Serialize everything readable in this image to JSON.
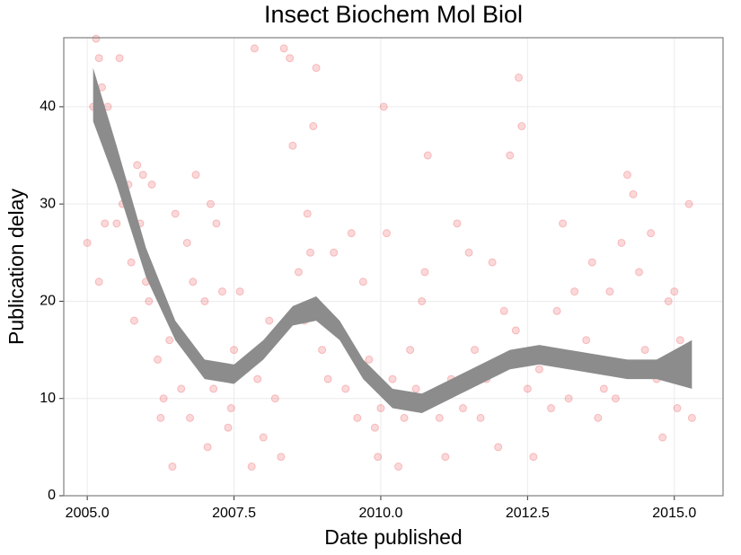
{
  "chart_data": {
    "type": "scatter",
    "title": "Insect Biochem Mol Biol",
    "x_label": "Date published",
    "y_label": "Publication delay",
    "xlim": [
      2004.6,
      2015.83
    ],
    "ylim": [
      0,
      47.1
    ],
    "xticks": [
      {
        "value": 2005,
        "label": "2005.0"
      },
      {
        "value": 2007.5,
        "label": "2007.5"
      },
      {
        "value": 2010,
        "label": "2010.0"
      },
      {
        "value": 2012.5,
        "label": "2012.5"
      },
      {
        "value": 2015,
        "label": "2015.0"
      }
    ],
    "yticks": [
      0,
      10,
      20,
      30,
      40
    ],
    "grid": true,
    "color": "#e8282a",
    "x": [
      2005.0,
      2005.1,
      2005.15,
      2005.2,
      2005.2,
      2005.25,
      2005.3,
      2005.35,
      2005.5,
      2005.55,
      2005.6,
      2005.7,
      2005.75,
      2005.8,
      2005.85,
      2005.9,
      2005.95,
      2006.0,
      2006.05,
      2006.1,
      2006.2,
      2006.25,
      2006.3,
      2006.4,
      2006.45,
      2006.5,
      2006.6,
      2006.7,
      2006.75,
      2006.8,
      2006.85,
      2006.9,
      2007.0,
      2007.05,
      2007.1,
      2007.15,
      2007.2,
      2007.3,
      2007.4,
      2007.45,
      2007.5,
      2007.6,
      2007.7,
      2007.8,
      2007.85,
      2007.9,
      2008.0,
      2008.1,
      2008.2,
      2008.3,
      2008.35,
      2008.45,
      2008.5,
      2008.6,
      2008.7,
      2008.75,
      2008.8,
      2008.85,
      2008.9,
      2009.0,
      2009.1,
      2009.2,
      2009.3,
      2009.4,
      2009.5,
      2009.6,
      2009.7,
      2009.8,
      2009.9,
      2009.95,
      2010.0,
      2010.05,
      2010.1,
      2010.2,
      2010.3,
      2010.4,
      2010.5,
      2010.6,
      2010.7,
      2010.75,
      2010.8,
      2010.9,
      2011.0,
      2011.1,
      2011.2,
      2011.3,
      2011.4,
      2011.5,
      2011.6,
      2011.7,
      2011.8,
      2011.9,
      2012.0,
      2012.1,
      2012.2,
      2012.3,
      2012.35,
      2012.4,
      2012.5,
      2012.6,
      2012.7,
      2012.8,
      2012.9,
      2013.0,
      2013.1,
      2013.2,
      2013.3,
      2013.4,
      2013.5,
      2013.6,
      2013.7,
      2013.8,
      2013.9,
      2014.0,
      2014.1,
      2014.2,
      2014.3,
      2014.4,
      2014.5,
      2014.6,
      2014.7,
      2014.8,
      2014.9,
      2015.0,
      2015.05,
      2015.1,
      2015.2,
      2015.25,
      2015.3
    ],
    "values": [
      26,
      40,
      47,
      45,
      22,
      42,
      28,
      40,
      28,
      45,
      30,
      32,
      24,
      18,
      34,
      28,
      33,
      22,
      20,
      32,
      14,
      8,
      10,
      16,
      3,
      29,
      11,
      26,
      8,
      22,
      33,
      14,
      20,
      5,
      30,
      11,
      28,
      21,
      7,
      9,
      15,
      21,
      13,
      3,
      46,
      12,
      6,
      18,
      10,
      4,
      46,
      45,
      36,
      23,
      18,
      29,
      25,
      38,
      44,
      15,
      12,
      25,
      17,
      11,
      27,
      8,
      22,
      14,
      7,
      4,
      9,
      40,
      27,
      12,
      3,
      8,
      15,
      11,
      20,
      23,
      35,
      10,
      8,
      4,
      12,
      28,
      9,
      25,
      15,
      8,
      12,
      24,
      5,
      19,
      35,
      17,
      43,
      38,
      11,
      4,
      13,
      15,
      9,
      19,
      28,
      10,
      21,
      14,
      16,
      24,
      8,
      11,
      21,
      10,
      26,
      33,
      31,
      23,
      15,
      27,
      12,
      6,
      20,
      21,
      9,
      16,
      14,
      30,
      8
    ],
    "band": {
      "color": "#8c8c8c",
      "x": [
        2005.1,
        2005.5,
        2006.0,
        2006.5,
        2007.0,
        2007.5,
        2008.0,
        2008.5,
        2008.9,
        2009.3,
        2009.7,
        2010.2,
        2010.7,
        2011.2,
        2011.7,
        2012.2,
        2012.7,
        2013.2,
        2013.7,
        2014.2,
        2014.7,
        2015.3
      ],
      "lower": [
        38.5,
        32,
        22.5,
        16,
        12,
        11.5,
        14,
        17.5,
        18,
        16,
        12,
        9,
        8.5,
        10,
        11.5,
        13,
        13.5,
        13,
        12.5,
        12,
        12,
        11
      ],
      "upper": [
        44,
        36,
        25.5,
        18,
        14,
        13.5,
        16,
        19.5,
        20.5,
        18,
        14,
        11,
        10.5,
        12,
        13.5,
        15,
        15.5,
        15,
        14.5,
        14,
        14,
        16
      ]
    }
  }
}
